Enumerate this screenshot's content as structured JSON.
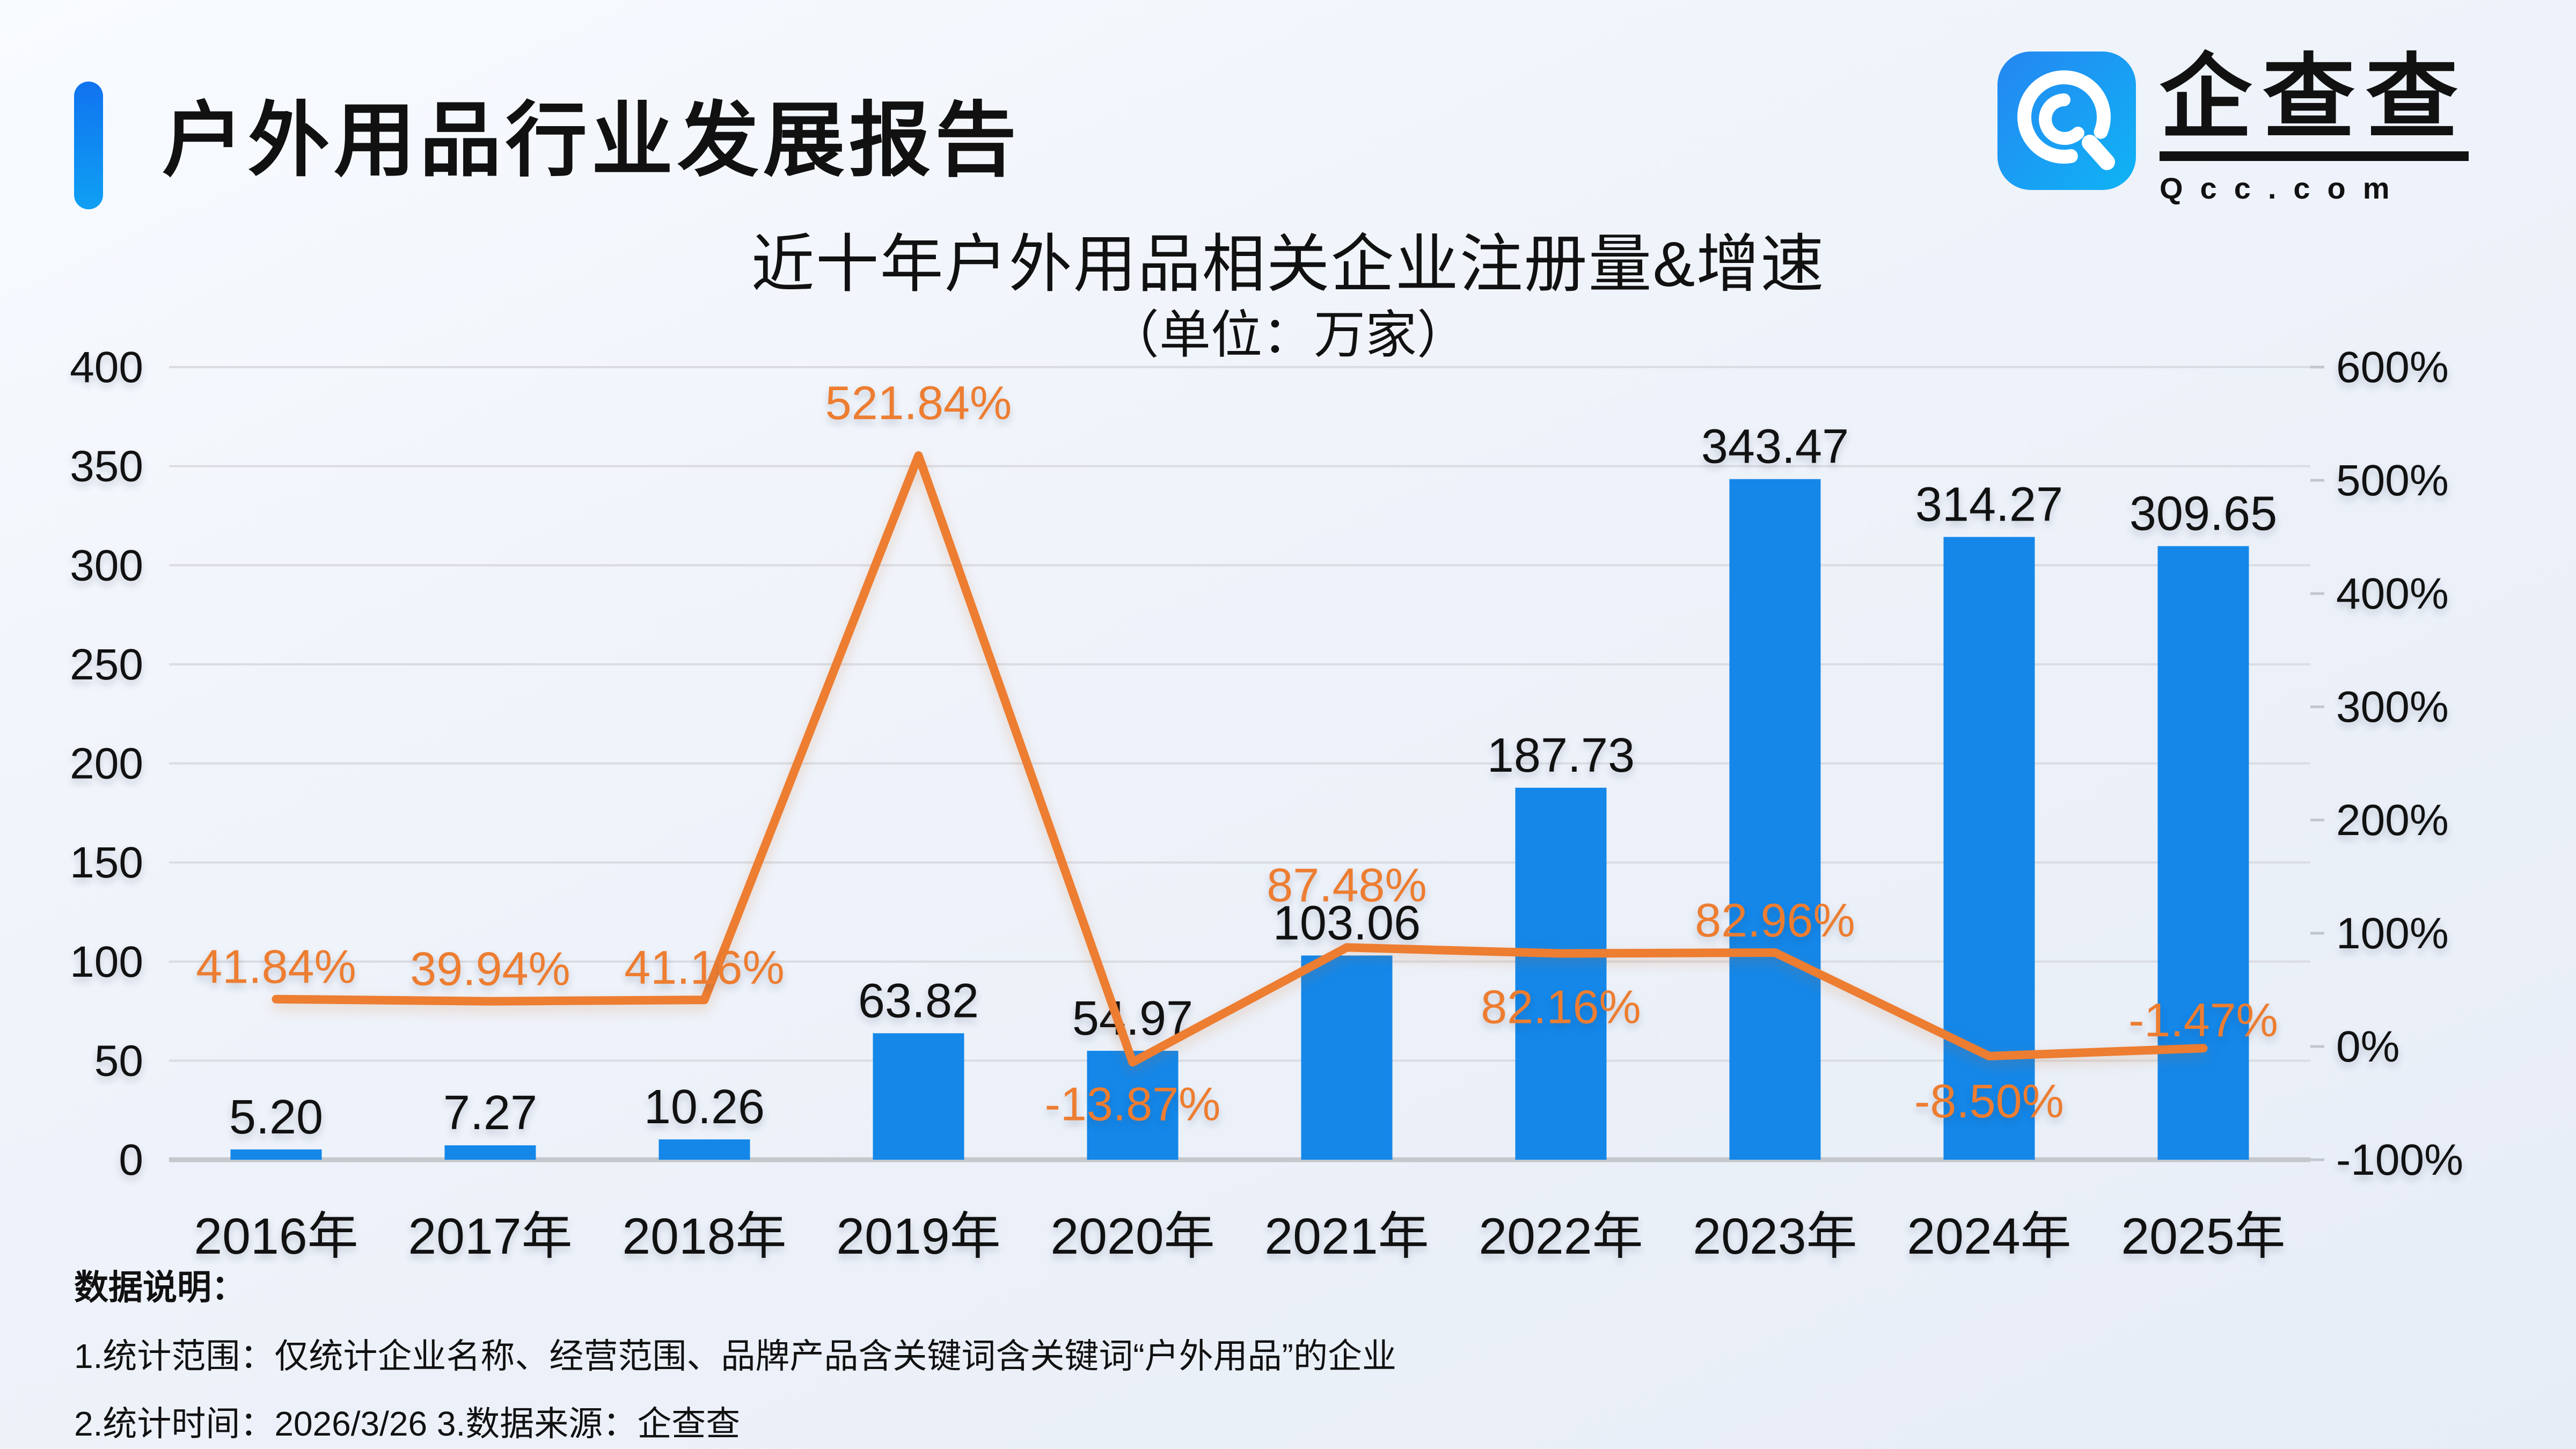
{
  "header": {
    "title": "户外用品行业发展报告",
    "accent_color_top": "#1173ef",
    "accent_color_bottom": "#0fa0f4"
  },
  "logo": {
    "text": "企查查",
    "domain": "Qcc.com",
    "icon_color_top": "#2586f2",
    "icon_color_bottom": "#0fb4f5"
  },
  "chart_data": {
    "type": "bar+line",
    "title": "近十年户外用品相关企业注册量&增速",
    "subtitle": "（单位：万家）",
    "categories": [
      "2016年",
      "2017年",
      "2018年",
      "2019年",
      "2020年",
      "2021年",
      "2022年",
      "2023年",
      "2024年",
      "2025年"
    ],
    "series": [
      {
        "name": "注册量",
        "type": "bar",
        "color": "#1487e9",
        "values": [
          5.2,
          7.27,
          10.26,
          63.82,
          54.97,
          103.06,
          187.73,
          343.47,
          314.27,
          309.65
        ],
        "labels": [
          "5.20",
          "7.27",
          "10.26",
          "63.82",
          "54.97",
          "103.06",
          "187.73",
          "343.47",
          "314.27",
          "309.65"
        ]
      },
      {
        "name": "增速",
        "type": "line",
        "color": "#ed7d31",
        "values": [
          41.84,
          39.94,
          41.16,
          521.84,
          -13.87,
          87.48,
          82.16,
          82.96,
          -8.5,
          -1.47
        ],
        "labels": [
          "41.84%",
          "39.94%",
          "41.16%",
          "521.84%",
          "-13.87%",
          "87.48%",
          "82.16%",
          "82.96%",
          "-8.50%",
          "-1.47%"
        ],
        "label_side": [
          "above",
          "above",
          "above",
          "above",
          "below",
          "above",
          "below",
          "above",
          "below",
          "above"
        ]
      }
    ],
    "left_axis": {
      "min": 0,
      "max": 400,
      "step": 50,
      "tick_labels": [
        "0",
        "50",
        "100",
        "150",
        "200",
        "250",
        "300",
        "350",
        "400"
      ]
    },
    "right_axis": {
      "min": -100,
      "max": 600,
      "step": 100,
      "tick_labels": [
        "-100%",
        "0%",
        "100%",
        "200%",
        "300%",
        "400%",
        "500%",
        "600%"
      ]
    },
    "grid": true,
    "grid_color": "#dadce2",
    "baseline_color": "#c4c7cc",
    "tick_color": "#c2c6cd",
    "text_color": "#111111",
    "legend_position": "none"
  },
  "footer": {
    "heading": "数据说明：",
    "notes": [
      "1.统计范围：仅统计企业名称、经营范围、品牌产品含关键词含关键词“户外用品”的企业",
      "2.统计时间：2026/3/26  3.数据来源：企查查"
    ]
  }
}
